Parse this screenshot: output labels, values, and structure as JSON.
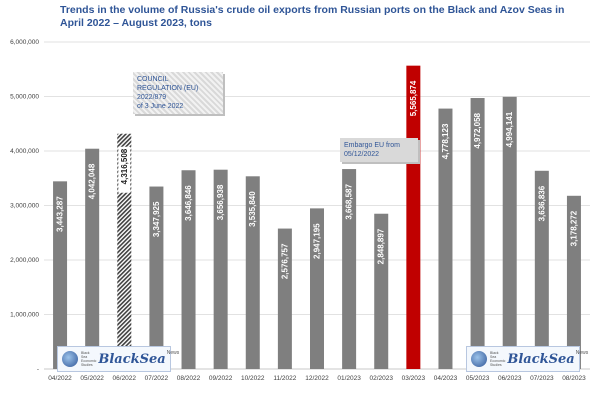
{
  "chart_data": {
    "type": "bar",
    "title": "Trends in the volume of Russia's crude oil exports from Russian ports on the Black and Azov Seas in April 2022 – August 2023, tons",
    "categories": [
      "04/2022",
      "05/2022",
      "06/2022",
      "07/2022",
      "08/2022",
      "09/2022",
      "10/2022",
      "11/2022",
      "12/2022",
      "01/2023",
      "02/2023",
      "03/2023",
      "04/2023",
      "05/2023",
      "06/2023",
      "07/2023",
      "08/2023"
    ],
    "values": [
      3443287,
      4042048,
      4316508,
      3347925,
      3646846,
      3656938,
      3535840,
      2576757,
      2947195,
      3668587,
      2848897,
      5565874,
      4778123,
      4972058,
      4994141,
      3636836,
      3178272
    ],
    "value_labels": [
      "3,443,287",
      "4,042,048",
      "4,316,508",
      "3,347,925",
      "3,646,846",
      "3,656,938",
      "3,535,840",
      "2,576,757",
      "2,947,195",
      "3,668,587",
      "2,848,897",
      "5,565,874",
      "4,778,123",
      "4,972,058",
      "4,994,141",
      "3,636,836",
      "3,178,272"
    ],
    "ylim": [
      0,
      6000000
    ],
    "yticks": [
      0,
      1000000,
      2000000,
      3000000,
      4000000,
      5000000,
      6000000
    ],
    "ytick_labels": [
      "-",
      "1,000,000",
      "2,000,000",
      "3,000,000",
      "4,000,000",
      "5,000,000",
      "6,000,000"
    ],
    "xlabel": "",
    "ylabel": "",
    "grid": true,
    "colors": {
      "default": "#7f7f7f",
      "highlight": "#c00000",
      "hatched": "#404040"
    },
    "highlight_index": 11,
    "hatched_index": 2,
    "annotations": {
      "council": [
        "COUNCIL",
        "REGULATION (EU)",
        "2022/879",
        "of 3 June 2022"
      ],
      "embargo": [
        "Embargo EU from",
        "05/12/2022"
      ]
    }
  },
  "logo": {
    "word": "BlackSea",
    "news": "News",
    "small": "Black Sea Economic Studies"
  }
}
